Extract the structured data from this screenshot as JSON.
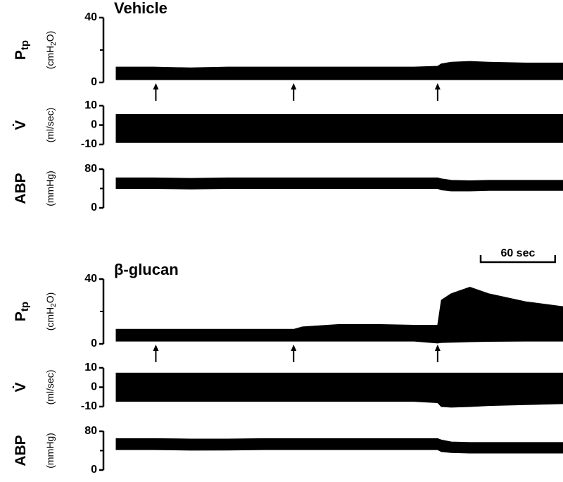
{
  "chart_data": [
    {
      "type": "band",
      "title": "Vehicle",
      "ylabel": "P",
      "ylabel_sub": "tp",
      "unit": "(cmH",
      "unit_sub": "2",
      "unit_end": "O)",
      "ylim": [
        0,
        40
      ],
      "yticks": [
        0,
        40
      ],
      "minor_yticks": [
        20
      ],
      "xlim": [
        0,
        360
      ],
      "x": [
        0,
        30,
        60,
        90,
        120,
        143,
        150,
        180,
        210,
        240,
        259,
        262,
        270,
        285,
        300,
        330,
        360
      ],
      "upper": [
        9.5,
        9.5,
        9,
        9.5,
        9.5,
        9.5,
        9.5,
        9.5,
        9.5,
        9.5,
        10,
        11.5,
        12.5,
        13,
        12.5,
        12,
        12
      ],
      "lower": [
        1.7,
        1.7,
        1.7,
        1.7,
        1.7,
        1.7,
        1.7,
        1.7,
        1.7,
        1.7,
        1.7,
        1.7,
        1.7,
        1.7,
        1.7,
        1.7,
        1.7
      ],
      "markers": [
        32,
        143,
        259
      ],
      "color": "#000000"
    },
    {
      "type": "band",
      "ylabel": "V̇",
      "unit": "(ml/sec)",
      "ylim": [
        -10,
        10
      ],
      "yticks": [
        -10,
        0,
        10
      ],
      "xlim": [
        0,
        360
      ],
      "x": [
        0,
        30,
        60,
        90,
        120,
        143,
        150,
        180,
        210,
        240,
        259,
        262,
        270,
        285,
        300,
        330,
        360
      ],
      "upper": [
        5.5,
        5.5,
        5.5,
        5.5,
        5.5,
        5.5,
        5.5,
        5.5,
        5.5,
        5.5,
        5.5,
        5.5,
        5.5,
        5.5,
        5.5,
        5.5,
        5.5
      ],
      "lower": [
        -9,
        -9,
        -9,
        -9,
        -9,
        -9,
        -9,
        -9,
        -9,
        -9,
        -9,
        -9,
        -9,
        -9,
        -9,
        -9,
        -9
      ],
      "color": "#000000"
    },
    {
      "type": "band",
      "ylabel": "ABP",
      "unit": "(mmHg)",
      "ylim": [
        0,
        80
      ],
      "yticks": [
        0,
        80
      ],
      "minor_yticks": [
        40
      ],
      "xlim": [
        0,
        360
      ],
      "x": [
        0,
        30,
        60,
        90,
        120,
        143,
        150,
        180,
        210,
        240,
        259,
        262,
        270,
        285,
        300,
        330,
        360
      ],
      "upper": [
        62,
        62,
        61,
        62,
        62,
        62,
        62,
        62,
        62,
        62,
        62,
        60,
        57,
        56,
        57,
        57,
        57
      ],
      "lower": [
        40,
        40,
        39,
        40,
        40,
        40,
        40,
        40,
        40,
        40,
        40,
        37,
        35,
        35,
        36,
        36,
        36
      ],
      "color": "#000000"
    },
    {
      "type": "band",
      "title": "β-glucan",
      "ylabel": "P",
      "ylabel_sub": "tp",
      "unit": "(cmH",
      "unit_sub": "2",
      "unit_end": "O)",
      "ylim": [
        0,
        40
      ],
      "yticks": [
        0,
        40
      ],
      "minor_yticks": [
        20
      ],
      "xlim": [
        0,
        360
      ],
      "x": [
        0,
        30,
        60,
        90,
        120,
        143,
        150,
        180,
        210,
        240,
        259,
        262,
        270,
        285,
        300,
        330,
        360
      ],
      "upper": [
        9,
        9,
        9,
        9,
        9,
        9,
        10.5,
        12,
        12,
        11.5,
        11.5,
        27,
        31,
        35,
        31,
        26,
        23
      ],
      "lower": [
        1.7,
        1.7,
        1.7,
        1.7,
        1.7,
        1.7,
        1.7,
        1.7,
        1.7,
        1.7,
        0.5,
        0.8,
        1,
        1.3,
        1.5,
        1.7,
        1.7
      ],
      "markers": [
        32,
        143,
        259
      ],
      "scale_bar": {
        "value": 60,
        "label": "60 sec"
      },
      "color": "#000000"
    },
    {
      "type": "band",
      "ylabel": "V̇",
      "unit": "(ml/sec)",
      "ylim": [
        -10,
        10
      ],
      "yticks": [
        -10,
        0,
        10
      ],
      "xlim": [
        0,
        360
      ],
      "x": [
        0,
        30,
        60,
        90,
        120,
        143,
        150,
        180,
        210,
        240,
        259,
        262,
        270,
        285,
        300,
        330,
        360
      ],
      "upper": [
        7.3,
        7.3,
        7.3,
        7.3,
        7.3,
        7.3,
        7.3,
        7.3,
        7.3,
        7.3,
        7.3,
        7.3,
        7.3,
        7.3,
        7.3,
        7.3,
        7.3
      ],
      "lower": [
        -7.3,
        -7.3,
        -7.3,
        -7.3,
        -7.3,
        -7.3,
        -7.3,
        -7.3,
        -7.3,
        -7.3,
        -8,
        -10,
        -10.3,
        -10,
        -9.5,
        -9,
        -8.5
      ],
      "color": "#000000"
    },
    {
      "type": "band",
      "ylabel": "ABP",
      "unit": "(mmHg)",
      "ylim": [
        0,
        80
      ],
      "yticks": [
        0,
        80
      ],
      "minor_yticks": [
        40
      ],
      "xlim": [
        0,
        360
      ],
      "x": [
        0,
        30,
        60,
        90,
        120,
        143,
        150,
        180,
        210,
        240,
        259,
        262,
        270,
        285,
        300,
        330,
        360
      ],
      "upper": [
        65,
        65,
        64,
        64,
        65,
        65,
        65,
        65,
        65,
        65,
        65,
        62,
        58,
        57,
        57,
        57,
        57
      ],
      "lower": [
        42,
        42,
        41,
        41,
        42,
        42,
        42,
        42,
        42,
        42,
        42,
        38,
        36,
        35,
        35,
        35,
        35
      ],
      "color": "#000000"
    }
  ]
}
